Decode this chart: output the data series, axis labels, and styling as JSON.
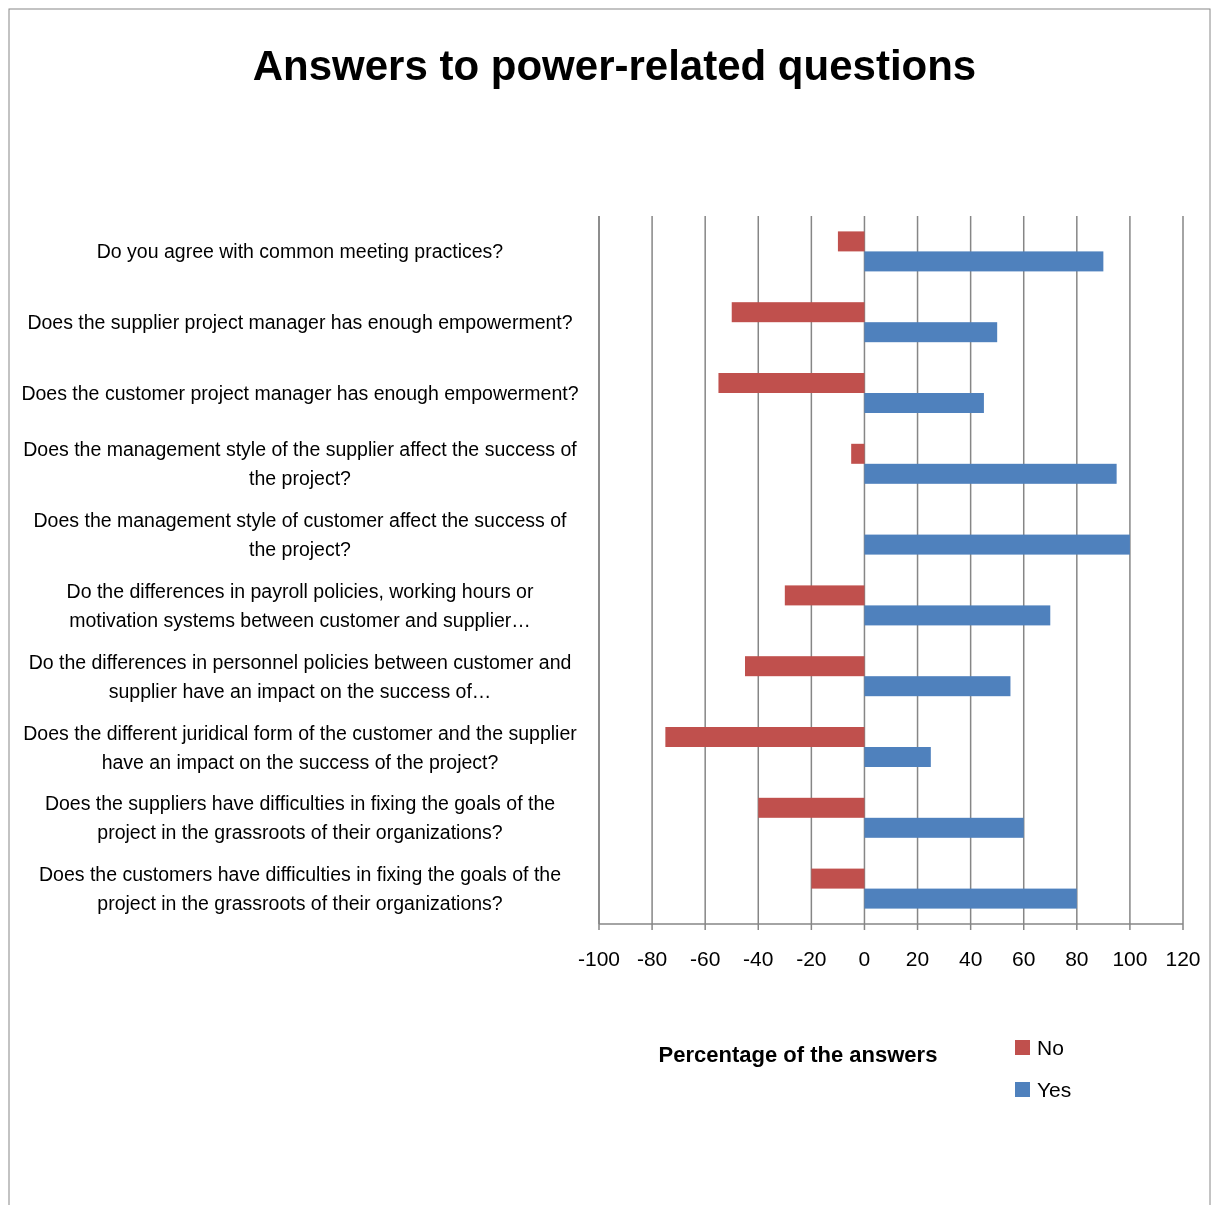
{
  "chart_data": {
    "type": "bar",
    "orientation": "horizontal",
    "title": "Answers to power-related questions",
    "xlabel": "Percentage of the answers",
    "categories": [
      "Do you agree with common meeting practices?",
      "Does the supplier project manager has enough empowerment?",
      "Does the customer project manager has enough empowerment?",
      "Does the management style of the supplier affect the success of the project?",
      "Does the management style of customer affect the success of the project?",
      "Do the differences in payroll policies, working hours or motivation systems between customer and supplier…",
      "Do the differences in personnel policies between customer and supplier have an impact on the success of…",
      "Does the different juridical form of the customer and the supplier have an impact on the success of the project?",
      "Does the suppliers have difficulties in fixing the goals of the project in the grassroots of their organizations?",
      "Does the customers have difficulties in fixing the goals of the project in the grassroots of their organizations?"
    ],
    "series": [
      {
        "name": "No",
        "color": "#c0504d",
        "values": [
          -10,
          -50,
          -55,
          -5,
          null,
          -30,
          -45,
          -75,
          -40,
          -20
        ]
      },
      {
        "name": "Yes",
        "color": "#4f81bd",
        "values": [
          90,
          50,
          45,
          95,
          100,
          70,
          55,
          25,
          60,
          80
        ]
      }
    ],
    "xlim": [
      -100,
      120
    ],
    "xticks": [
      -100,
      -80,
      -60,
      -40,
      -20,
      0,
      20,
      40,
      60,
      80,
      100,
      120
    ],
    "grid": "x",
    "legend": "bottom right"
  }
}
